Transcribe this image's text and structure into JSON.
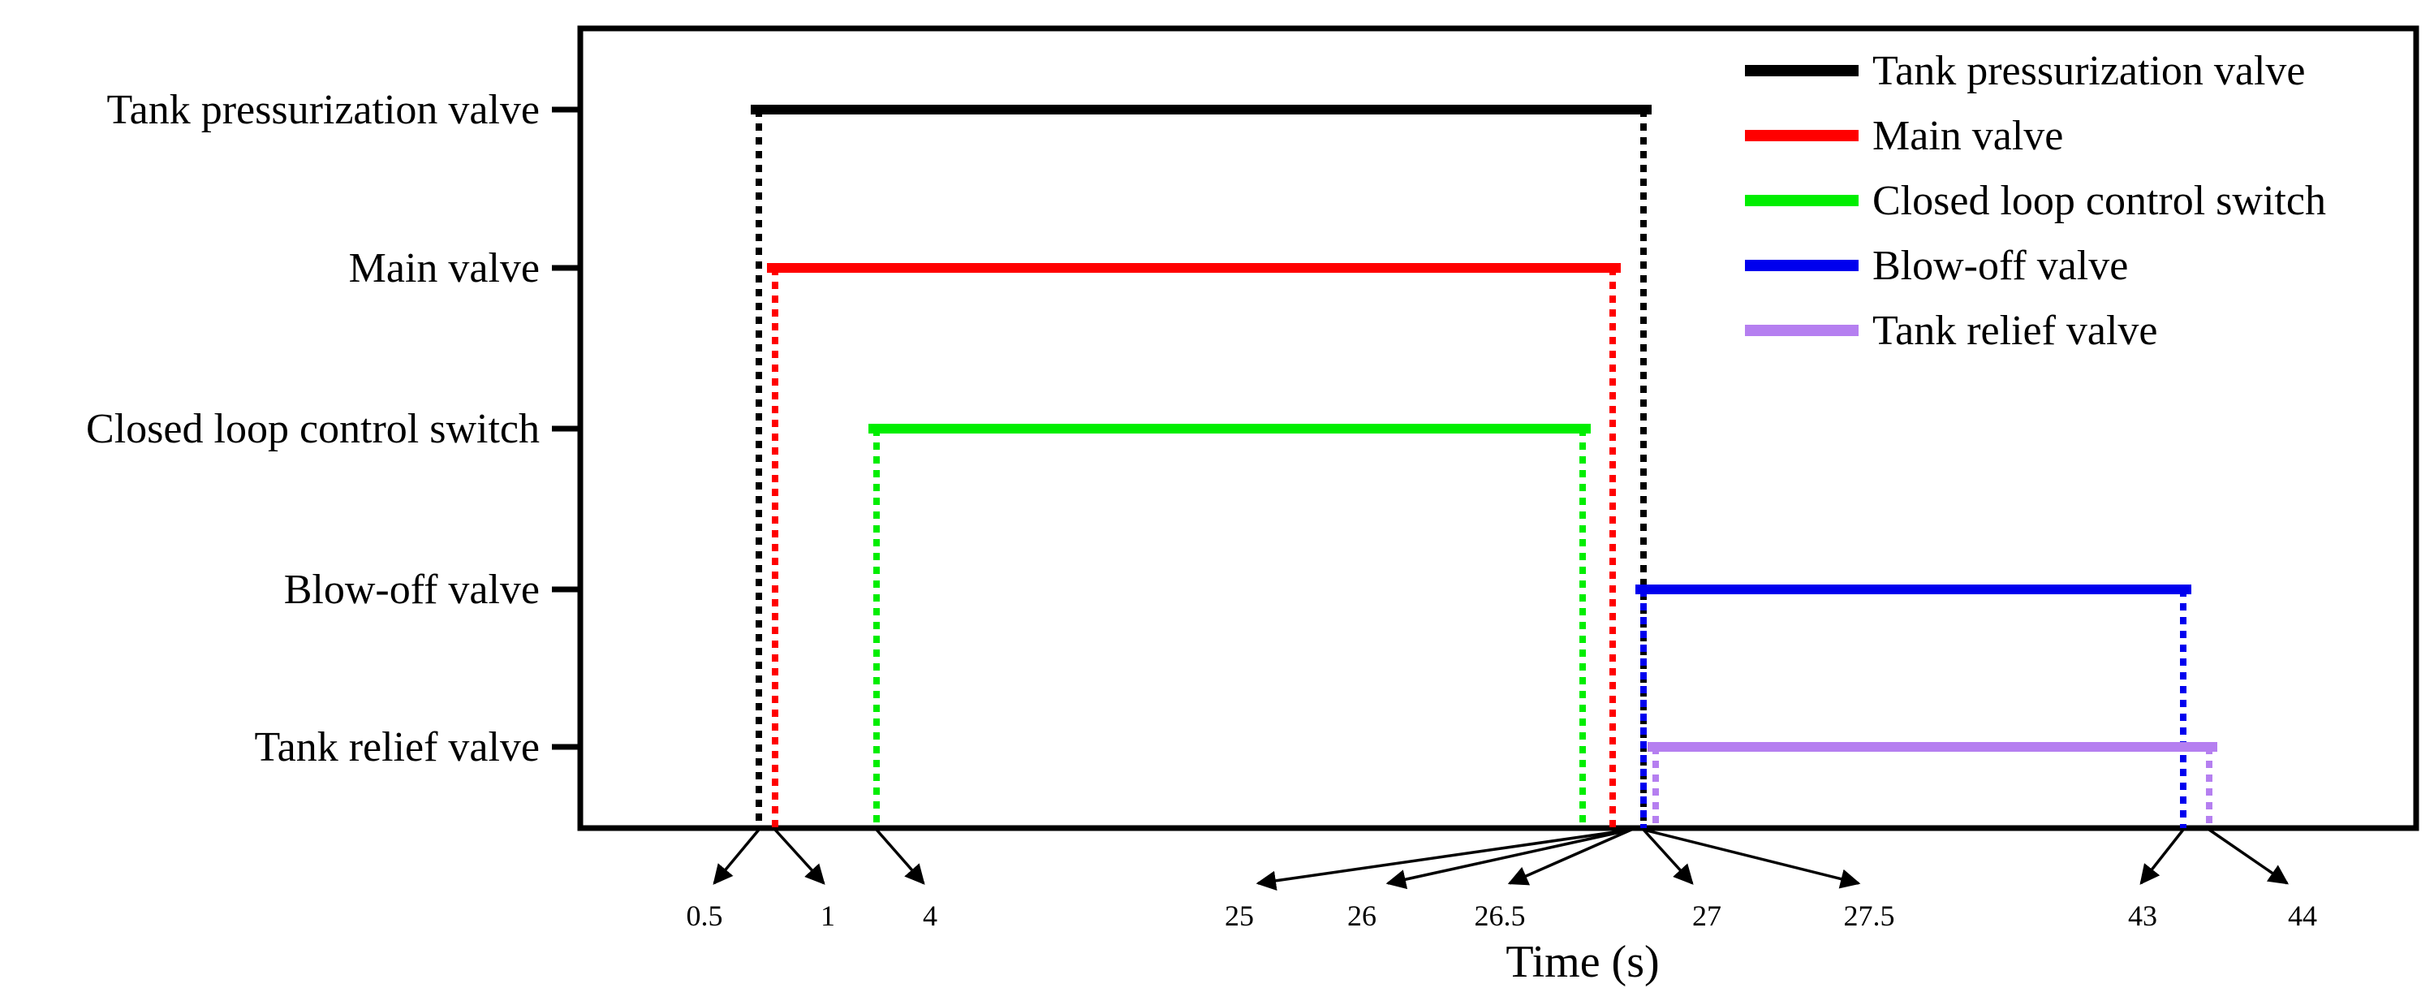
{
  "chart_data": {
    "type": "timeline",
    "xlabel": "Time (s)",
    "ylabel": "",
    "title": "",
    "series": [
      {
        "name": "Tank pressurization valve",
        "color": "#000000",
        "start": 0.5,
        "end": 27
      },
      {
        "name": "Main valve",
        "color": "#ff0000",
        "start": 1,
        "end": 26.5
      },
      {
        "name": "Closed loop control switch",
        "color": "#00ee00",
        "start": 4,
        "end": 26
      },
      {
        "name": "Blow-off valve",
        "color": "#0000ee",
        "start": 27,
        "end": 43
      },
      {
        "name": "Tank relief valve",
        "color": "#b57ff0",
        "start": 27.5,
        "end": 44
      }
    ],
    "time_labels": [
      "0.5",
      "1",
      "4",
      "25",
      "26",
      "26.5",
      "27",
      "27.5",
      "43",
      "44"
    ],
    "legend_position": "top-right"
  }
}
